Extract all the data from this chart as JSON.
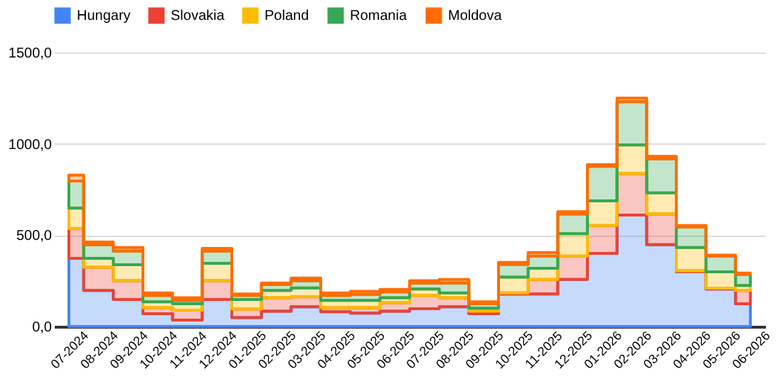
{
  "chart_data": {
    "type": "area",
    "stacked": true,
    "categories": [
      "07-2024",
      "08-2024",
      "09-2024",
      "10-2024",
      "11-2024",
      "12-2024",
      "01-2025",
      "02-2025",
      "03-2025",
      "04-2025",
      "05-2025",
      "06-2025",
      "07-2025",
      "08-2025",
      "09-2025",
      "10-2025",
      "11-2025",
      "12-2025",
      "01-2026",
      "02-2026",
      "03-2026",
      "04-2026",
      "05-2026",
      "06-2026"
    ],
    "series": [
      {
        "name": "Hungary",
        "color": "#4285f4",
        "values": [
          373,
          197,
          148,
          70,
          35,
          148,
          49,
          84,
          108,
          81,
          73,
          84,
          97,
          108,
          70,
          178,
          178,
          257,
          400,
          610,
          448,
          300,
          205,
          124
        ]
      },
      {
        "name": "Slovakia",
        "color": "#ea4335",
        "values": [
          162,
          127,
          103,
          33,
          54,
          103,
          46,
          73,
          54,
          22,
          30,
          46,
          73,
          49,
          14,
          6,
          79,
          129,
          153,
          227,
          168,
          5,
          5,
          73
        ]
      },
      {
        "name": "Poland",
        "color": "#fbbc04",
        "values": [
          113,
          49,
          87,
          32,
          35,
          95,
          53,
          40,
          49,
          40,
          40,
          27,
          35,
          27,
          16,
          86,
          62,
          122,
          135,
          157,
          116,
          127,
          89,
          27
        ]
      },
      {
        "name": "Romania",
        "color": "#34a853",
        "values": [
          149,
          75,
          75,
          35,
          19,
          67,
          22,
          33,
          40,
          27,
          33,
          32,
          33,
          54,
          24,
          70,
          67,
          108,
          189,
          237,
          186,
          113,
          87,
          62
        ]
      },
      {
        "name": "Moldova",
        "color": "#ff6d01",
        "values": [
          32,
          14,
          19,
          14,
          14,
          14,
          8,
          8,
          14,
          14,
          16,
          14,
          13,
          19,
          11,
          11,
          19,
          13,
          9,
          19,
          14,
          8,
          5,
          6
        ]
      }
    ],
    "ylim": [
      0,
      1500
    ],
    "yticks": [
      {
        "value": 0,
        "label": "0,0"
      },
      {
        "value": 500,
        "label": "500,0"
      },
      {
        "value": 1000,
        "label": "1000,0"
      },
      {
        "value": 1500,
        "label": "1500,0"
      }
    ],
    "grid": "y",
    "legend": "top"
  }
}
